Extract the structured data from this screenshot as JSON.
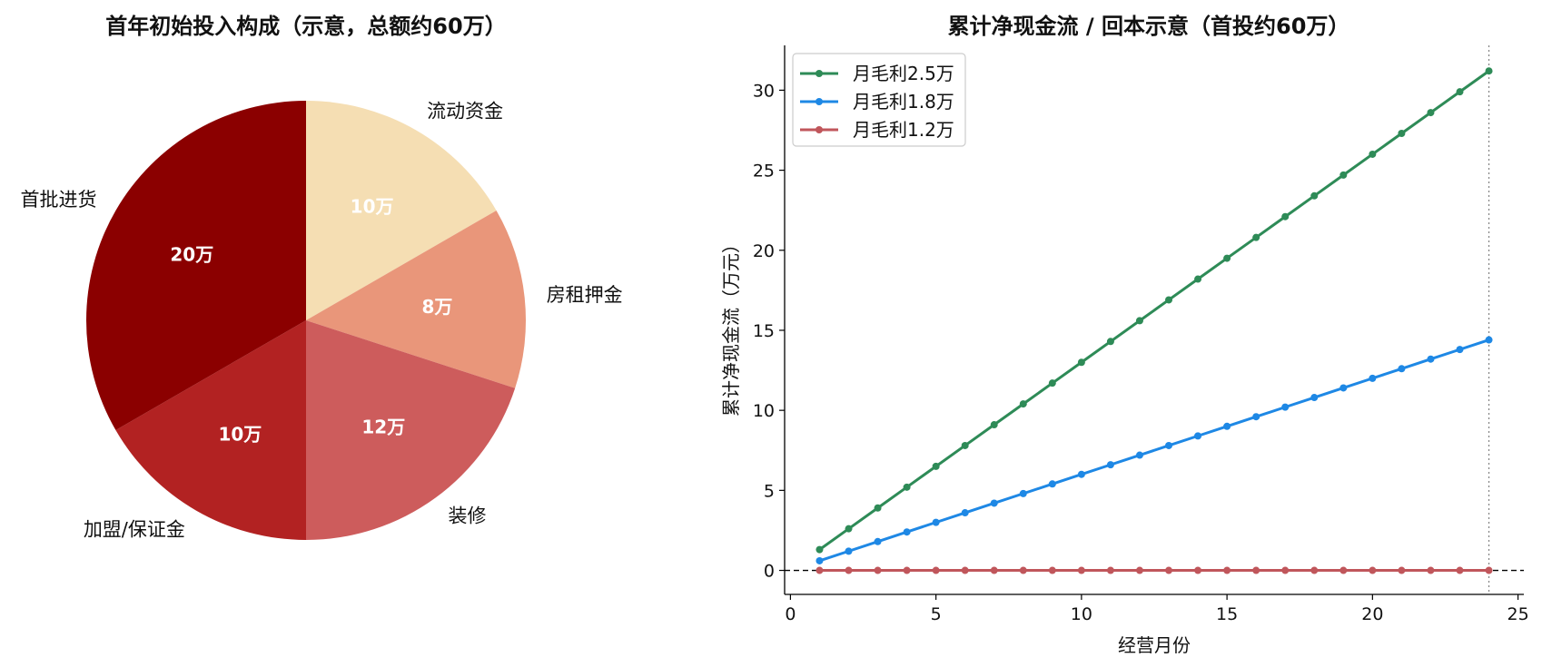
{
  "chart_data": [
    {
      "type": "pie",
      "title": "首年初始投入构成（示意，总额约60万）",
      "categories": [
        "流动资金",
        "房租押金",
        "装修",
        "加盟/保证金",
        "首批进货"
      ],
      "values": [
        10,
        8,
        12,
        10,
        20
      ],
      "value_labels": [
        "10万",
        "8万",
        "12万",
        "10万",
        "20万"
      ],
      "colors": [
        "#f5deb3",
        "#e9967a",
        "#cd5c5c",
        "#b22222",
        "#8b0000"
      ],
      "start_angle_deg": 90,
      "direction": "clockwise"
    },
    {
      "type": "line",
      "title": "累计净现金流 / 回本示意（首投约60万）",
      "xlabel": "经营月份",
      "ylabel": "累计净现金流（万元）",
      "xlim": [
        -0.2,
        25.2
      ],
      "ylim": [
        -1.5,
        32.8
      ],
      "xticks": [
        0,
        5,
        10,
        15,
        20,
        25
      ],
      "yticks": [
        0,
        5,
        10,
        15,
        20,
        25,
        30
      ],
      "legend_position": "top-left",
      "grid": false,
      "reference_lines": [
        {
          "orientation": "horizontal",
          "value": 0,
          "style": "dashed",
          "color": "#000000"
        },
        {
          "orientation": "vertical",
          "value": 24,
          "style": "dotted",
          "color": "#888888"
        }
      ],
      "x": [
        1,
        2,
        3,
        4,
        5,
        6,
        7,
        8,
        9,
        10,
        11,
        12,
        13,
        14,
        15,
        16,
        17,
        18,
        19,
        20,
        21,
        22,
        23,
        24
      ],
      "series": [
        {
          "name": "月毛利2.5万",
          "color": "#2e8b57",
          "values": [
            1.3,
            2.6,
            3.9,
            5.2,
            6.5,
            7.8,
            9.1,
            10.4,
            11.7,
            13.0,
            14.3,
            15.6,
            16.9,
            18.2,
            19.5,
            20.8,
            22.1,
            23.4,
            24.7,
            26.0,
            27.3,
            28.6,
            29.9,
            31.2
          ]
        },
        {
          "name": "月毛利1.8万",
          "color": "#1e88e5",
          "values": [
            0.6,
            1.2,
            1.8,
            2.4,
            3.0,
            3.6,
            4.2,
            4.8,
            5.4,
            6.0,
            6.6,
            7.2,
            7.8,
            8.4,
            9.0,
            9.6,
            10.2,
            10.8,
            11.4,
            12.0,
            12.6,
            13.2,
            13.8,
            14.4
          ]
        },
        {
          "name": "月毛利1.2万",
          "color": "#c0565b",
          "values": [
            0,
            0,
            0,
            0,
            0,
            0,
            0,
            0,
            0,
            0,
            0,
            0,
            0,
            0,
            0,
            0,
            0,
            0,
            0,
            0,
            0,
            0,
            0,
            0
          ]
        }
      ]
    }
  ]
}
